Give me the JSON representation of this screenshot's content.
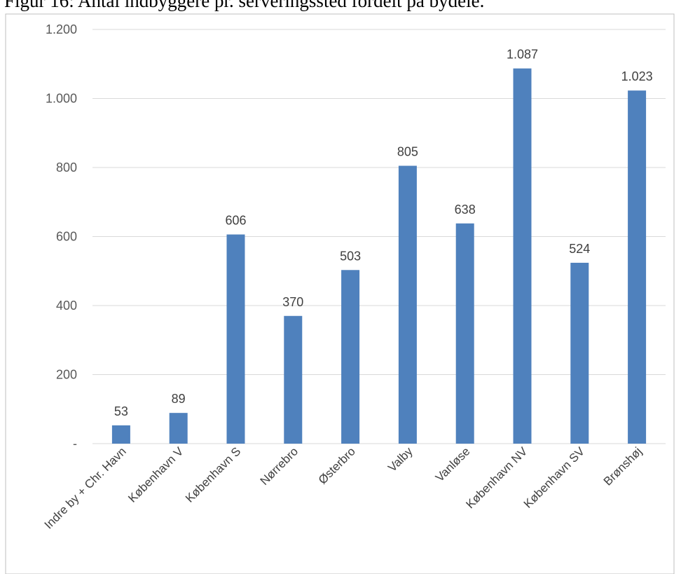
{
  "caption": "Figur 16: Antal indbyggere pr. serveringssted fordelt på bydele.",
  "colors": {
    "bar": "#4f81bd",
    "grid": "#d9d9d9",
    "border": "#bfbfbf"
  },
  "chart_data": {
    "type": "bar",
    "title": "",
    "xlabel": "",
    "ylabel": "",
    "categories": [
      "Indre by + Chr. Havn",
      "København V",
      "København S",
      "Nørrebro",
      "Østerbro",
      "Valby",
      "Vanløse",
      "København NV",
      "København SV",
      "Brønshøj"
    ],
    "values": [
      53,
      89,
      606,
      370,
      503,
      805,
      638,
      1087,
      524,
      1023
    ],
    "data_labels": [
      "53",
      "89",
      "606",
      "370",
      "503",
      "805",
      "638",
      "1.087",
      "524",
      "1.023"
    ],
    "ylim": [
      0,
      1200
    ],
    "yticks": [
      0,
      200,
      400,
      600,
      800,
      1000,
      1200
    ],
    "ytick_labels": [
      "-",
      "200",
      "400",
      "600",
      "800",
      "1.000",
      "1.200"
    ],
    "grid": true,
    "legend": "none"
  }
}
